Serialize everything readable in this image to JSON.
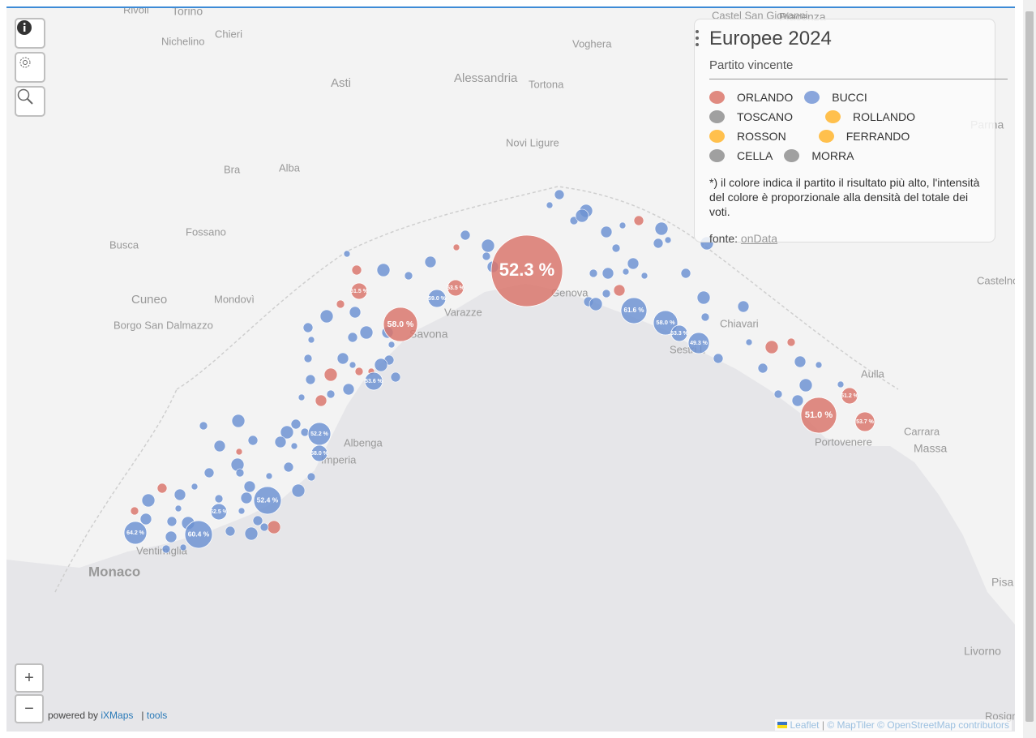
{
  "places": [
    "Rivoli",
    "Torino",
    "Chieri",
    "Nichelino",
    "Asti",
    "Alessandria",
    "Voghera",
    "Tortona",
    "Castel San Giovanni",
    "Piacenza",
    "Novi Ligure",
    "Bra",
    "Alba",
    "Busca",
    "Fossano",
    "Cuneo",
    "Mondovì",
    "Borgo San Dalmazzo",
    "Monaco",
    "Parma",
    "Castelnovo ne'",
    "Aulla",
    "Massa",
    "Pisa",
    "Livorno",
    "Rosignano S",
    "Sestri L",
    "Portovenere",
    "Carrara",
    "Genova",
    "Savona",
    "Varazze",
    "Albenga",
    "Imperia",
    "Ventimiglia",
    "Chiavari"
  ],
  "bubbles": [
    {
      "label": "52.3 %",
      "color": "#d9776d"
    },
    {
      "label": "58.0 %",
      "color": "#d9776d"
    },
    {
      "label": "51.0 %",
      "color": "#d9776d"
    },
    {
      "label": "61.6 %",
      "color": "#6f93d2"
    },
    {
      "label": "58.0 %",
      "color": "#6f93d2"
    },
    {
      "label": "52.4 %",
      "color": "#6f93d2"
    },
    {
      "label": "60.4 %",
      "color": "#6f93d2"
    },
    {
      "label": "64.2 %",
      "color": "#6f93d2"
    },
    {
      "label": "52.2 %",
      "color": "#6f93d2"
    },
    {
      "label": "49.3 %",
      "color": "#6f93d2"
    },
    {
      "label": "53.6 %",
      "color": "#6f93d2"
    },
    {
      "label": "59.0 %",
      "color": "#6f93d2"
    },
    {
      "label": "51.5 %",
      "color": "#d9776d"
    },
    {
      "label": "53.5 %",
      "color": "#d9776d"
    },
    {
      "label": "58.0 %",
      "color": "#6f93d2"
    },
    {
      "label": "52.5 %",
      "color": "#6f93d2"
    },
    {
      "label": "53.3 %",
      "color": "#6f93d2"
    },
    {
      "label": "51.2 %",
      "color": "#d9776d"
    },
    {
      "label": "53.7 %",
      "color": "#d9776d"
    }
  ],
  "legend": {
    "title": "Europee 2024",
    "subtitle": "Partito vincente",
    "items": [
      {
        "name": "ORLANDO",
        "color": "#e08a80"
      },
      {
        "name": "BUCCI",
        "color": "#8aa6dc"
      },
      {
        "name": "TOSCANO",
        "color": "#a0a0a0"
      },
      {
        "name": "ROLLANDO",
        "color": "#ffc04d"
      },
      {
        "name": "ROSSON",
        "color": "#ffc04d"
      },
      {
        "name": "FERRANDO",
        "color": "#ffc04d"
      },
      {
        "name": "CELLA",
        "color": "#a0a0a0"
      },
      {
        "name": "MORRA",
        "color": "#a0a0a0"
      }
    ],
    "note": "*) il colore indica il partito il risultato più alto, l'intensità del colore è proporzionale alla densità del totale dei voti.",
    "source_label": "fonte:",
    "source_link": "onData"
  },
  "controls": {
    "zoom_in": "+",
    "zoom_out": "−"
  },
  "footer": {
    "powered": "powered by",
    "brand": "iXMaps",
    "separator": "|",
    "tools": "tools"
  },
  "attribution": {
    "leaflet": "Leaflet",
    "separator": "|",
    "maptiler": "© MapTiler",
    "osm": "© OpenStreetMap contributors"
  }
}
